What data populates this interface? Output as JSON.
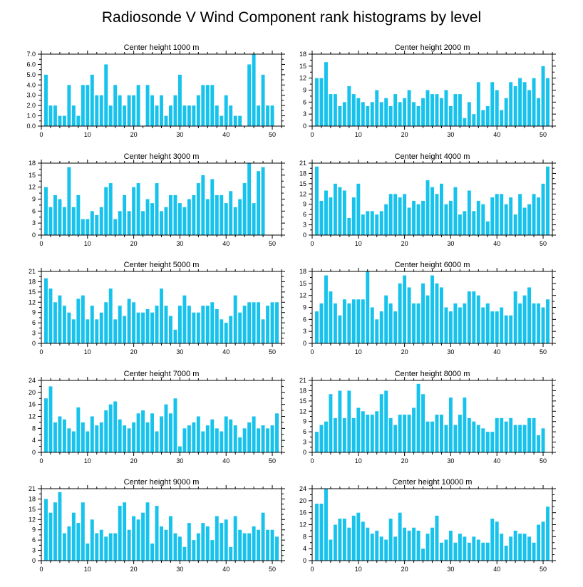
{
  "figure_title": "Radiosonde V Wind Component rank histograms by level",
  "colors": {
    "bar": "#17c3ec",
    "axis": "#000000",
    "background": "#ffffff"
  },
  "chart_data": [
    {
      "type": "bar",
      "title": "Center height 1000 m",
      "xlim": [
        0,
        52
      ],
      "ylim": [
        0,
        7.0
      ],
      "xticks": [
        0,
        10,
        20,
        30,
        40,
        50
      ],
      "yticks": [
        0,
        1,
        2,
        3,
        4,
        5,
        6,
        7
      ],
      "ytick_labels": [
        "0.0",
        "1.0",
        "2.0",
        "3.0",
        "4.0",
        "5.0",
        "6.0",
        "7.0"
      ],
      "x": [
        1,
        2,
        3,
        4,
        5,
        6,
        7,
        8,
        9,
        10,
        11,
        12,
        13,
        14,
        15,
        16,
        17,
        18,
        19,
        20,
        21,
        22,
        23,
        24,
        25,
        26,
        27,
        28,
        29,
        30,
        31,
        32,
        33,
        34,
        35,
        36,
        37,
        38,
        39,
        40,
        41,
        42,
        43,
        44,
        45,
        46,
        47,
        48,
        49,
        50,
        51
      ],
      "values": [
        5,
        2,
        2,
        1,
        1,
        4,
        2,
        1,
        4,
        4,
        5,
        3,
        3,
        6,
        2,
        4,
        3,
        2,
        3,
        3,
        4,
        0,
        4,
        3,
        2,
        3,
        1,
        2,
        3,
        5,
        2,
        2,
        2,
        3,
        4,
        4,
        4,
        2,
        1,
        3,
        2,
        1,
        1,
        0,
        6,
        7,
        2,
        5,
        2,
        2,
        0
      ]
    },
    {
      "type": "bar",
      "title": "Center height 2000 m",
      "xlim": [
        0,
        52
      ],
      "ylim": [
        0,
        18
      ],
      "xticks": [
        0,
        10,
        20,
        30,
        40,
        50
      ],
      "yticks": [
        0,
        3,
        6,
        9,
        12,
        15,
        18
      ],
      "ytick_labels": [
        "0",
        "3",
        "6",
        "9",
        "12",
        "15",
        "18"
      ],
      "x": [
        1,
        2,
        3,
        4,
        5,
        6,
        7,
        8,
        9,
        10,
        11,
        12,
        13,
        14,
        15,
        16,
        17,
        18,
        19,
        20,
        21,
        22,
        23,
        24,
        25,
        26,
        27,
        28,
        29,
        30,
        31,
        32,
        33,
        34,
        35,
        36,
        37,
        38,
        39,
        40,
        41,
        42,
        43,
        44,
        45,
        46,
        47,
        48,
        49,
        50,
        51
      ],
      "values": [
        12,
        12,
        16,
        8,
        8,
        5,
        6,
        10,
        8,
        7,
        6,
        5,
        6,
        9,
        6,
        7,
        5,
        8,
        6,
        7,
        9,
        6,
        5,
        7,
        9,
        8,
        8,
        7,
        9,
        5,
        8,
        8,
        2,
        6,
        3,
        11,
        4,
        5,
        11,
        9,
        4,
        7,
        11,
        10,
        12,
        11,
        9,
        12,
        7,
        15,
        12
      ]
    },
    {
      "type": "bar",
      "title": "Center height 3000 m",
      "xlim": [
        0,
        52
      ],
      "ylim": [
        0,
        18
      ],
      "xticks": [
        0,
        10,
        20,
        30,
        40,
        50
      ],
      "yticks": [
        0,
        3,
        6,
        9,
        12,
        15,
        18
      ],
      "ytick_labels": [
        "0",
        "3",
        "6",
        "9",
        "12",
        "15",
        "18"
      ],
      "x": [
        1,
        2,
        3,
        4,
        5,
        6,
        7,
        8,
        9,
        10,
        11,
        12,
        13,
        14,
        15,
        16,
        17,
        18,
        19,
        20,
        21,
        22,
        23,
        24,
        25,
        26,
        27,
        28,
        29,
        30,
        31,
        32,
        33,
        34,
        35,
        36,
        37,
        38,
        39,
        40,
        41,
        42,
        43,
        44,
        45,
        46,
        47,
        48,
        49,
        50,
        51
      ],
      "values": [
        12,
        7,
        10,
        9,
        7,
        17,
        7,
        10,
        4,
        4,
        6,
        5,
        7,
        12,
        13,
        4,
        6,
        10,
        6,
        12,
        13,
        6,
        9,
        8,
        13,
        6,
        7,
        10,
        10,
        8,
        7,
        9,
        10,
        13,
        15,
        9,
        14,
        10,
        10,
        8,
        11,
        7,
        9,
        13,
        18,
        8,
        16,
        17,
        0,
        0,
        0
      ]
    },
    {
      "type": "bar",
      "title": "Center height 4000 m",
      "xlim": [
        0,
        52
      ],
      "ylim": [
        0,
        21
      ],
      "xticks": [
        0,
        10,
        20,
        30,
        40,
        50
      ],
      "yticks": [
        0,
        3,
        6,
        9,
        12,
        15,
        18,
        21
      ],
      "ytick_labels": [
        "0",
        "3",
        "6",
        "9",
        "12",
        "15",
        "18",
        "21"
      ],
      "x": [
        1,
        2,
        3,
        4,
        5,
        6,
        7,
        8,
        9,
        10,
        11,
        12,
        13,
        14,
        15,
        16,
        17,
        18,
        19,
        20,
        21,
        22,
        23,
        24,
        25,
        26,
        27,
        28,
        29,
        30,
        31,
        32,
        33,
        34,
        35,
        36,
        37,
        38,
        39,
        40,
        41,
        42,
        43,
        44,
        45,
        46,
        47,
        48,
        49,
        50,
        51
      ],
      "values": [
        20,
        10,
        13,
        11,
        15,
        14,
        13,
        5,
        11,
        15,
        6,
        7,
        7,
        6,
        7,
        9,
        12,
        12,
        11,
        12,
        8,
        10,
        9,
        10,
        16,
        14,
        12,
        15,
        9,
        10,
        14,
        6,
        7,
        13,
        7,
        10,
        9,
        4,
        11,
        12,
        12,
        9,
        11,
        6,
        12,
        8,
        9,
        12,
        11,
        15,
        20
      ]
    },
    {
      "type": "bar",
      "title": "Center height 5000 m",
      "xlim": [
        0,
        52
      ],
      "ylim": [
        0,
        21
      ],
      "xticks": [
        0,
        10,
        20,
        30,
        40,
        50
      ],
      "yticks": [
        0,
        3,
        6,
        9,
        12,
        15,
        18,
        21
      ],
      "ytick_labels": [
        "0",
        "3",
        "6",
        "9",
        "12",
        "15",
        "18",
        "21"
      ],
      "x": [
        1,
        2,
        3,
        4,
        5,
        6,
        7,
        8,
        9,
        10,
        11,
        12,
        13,
        14,
        15,
        16,
        17,
        18,
        19,
        20,
        21,
        22,
        23,
        24,
        25,
        26,
        27,
        28,
        29,
        30,
        31,
        32,
        33,
        34,
        35,
        36,
        37,
        38,
        39,
        40,
        41,
        42,
        43,
        44,
        45,
        46,
        47,
        48,
        49,
        50,
        51
      ],
      "values": [
        19,
        16,
        12,
        14,
        11,
        9,
        7,
        13,
        14,
        7,
        11,
        7,
        9,
        12,
        16,
        7,
        11,
        8,
        13,
        12,
        9,
        9,
        10,
        9,
        11,
        16,
        11,
        8,
        4,
        11,
        14,
        11,
        9,
        9,
        11,
        11,
        12,
        10,
        7,
        6,
        8,
        14,
        9,
        11,
        12,
        12,
        12,
        7,
        11,
        12,
        12
      ]
    },
    {
      "type": "bar",
      "title": "Center height 6000 m",
      "xlim": [
        0,
        52
      ],
      "ylim": [
        0,
        18
      ],
      "xticks": [
        0,
        10,
        20,
        30,
        40,
        50
      ],
      "yticks": [
        0,
        3,
        6,
        9,
        12,
        15,
        18
      ],
      "ytick_labels": [
        "0",
        "3",
        "6",
        "9",
        "12",
        "15",
        "18"
      ],
      "x": [
        1,
        2,
        3,
        4,
        5,
        6,
        7,
        8,
        9,
        10,
        11,
        12,
        13,
        14,
        15,
        16,
        17,
        18,
        19,
        20,
        21,
        22,
        23,
        24,
        25,
        26,
        27,
        28,
        29,
        30,
        31,
        32,
        33,
        34,
        35,
        36,
        37,
        38,
        39,
        40,
        41,
        42,
        43,
        44,
        45,
        46,
        47,
        48,
        49,
        50,
        51
      ],
      "values": [
        8,
        10,
        17,
        13,
        10,
        7,
        11,
        10,
        11,
        11,
        11,
        18,
        9,
        6,
        8,
        12,
        10,
        8,
        15,
        17,
        14,
        10,
        10,
        15,
        12,
        17,
        15,
        14,
        9,
        8,
        10,
        9,
        10,
        13,
        13,
        12,
        9,
        10,
        8,
        8,
        9,
        7,
        7,
        13,
        10,
        12,
        14,
        10,
        10,
        9,
        11
      ]
    },
    {
      "type": "bar",
      "title": "Center height 7000 m",
      "xlim": [
        0,
        52
      ],
      "ylim": [
        0,
        24
      ],
      "xticks": [
        0,
        10,
        20,
        30,
        40,
        50
      ],
      "yticks": [
        0,
        4,
        8,
        12,
        16,
        20,
        24
      ],
      "ytick_labels": [
        "0",
        "4",
        "8",
        "12",
        "16",
        "20",
        "24"
      ],
      "x": [
        1,
        2,
        3,
        4,
        5,
        6,
        7,
        8,
        9,
        10,
        11,
        12,
        13,
        14,
        15,
        16,
        17,
        18,
        19,
        20,
        21,
        22,
        23,
        24,
        25,
        26,
        27,
        28,
        29,
        30,
        31,
        32,
        33,
        34,
        35,
        36,
        37,
        38,
        39,
        40,
        41,
        42,
        43,
        44,
        45,
        46,
        47,
        48,
        49,
        50,
        51
      ],
      "values": [
        18,
        22,
        10,
        12,
        11,
        8,
        7,
        15,
        10,
        7,
        12,
        9,
        10,
        14,
        16,
        17,
        11,
        9,
        8,
        10,
        13,
        14,
        10,
        13,
        7,
        12,
        16,
        13,
        18,
        2,
        8,
        9,
        10,
        12,
        7,
        9,
        11,
        8,
        7,
        12,
        11,
        9,
        5,
        8,
        10,
        12,
        8,
        9,
        8,
        9,
        13
      ]
    },
    {
      "type": "bar",
      "title": "Center height 8000 m",
      "xlim": [
        0,
        52
      ],
      "ylim": [
        0,
        21
      ],
      "xticks": [
        0,
        10,
        20,
        30,
        40,
        50
      ],
      "yticks": [
        0,
        3,
        6,
        9,
        12,
        15,
        18,
        21
      ],
      "ytick_labels": [
        "0",
        "3",
        "6",
        "9",
        "12",
        "15",
        "18",
        "21"
      ],
      "x": [
        1,
        2,
        3,
        4,
        5,
        6,
        7,
        8,
        9,
        10,
        11,
        12,
        13,
        14,
        15,
        16,
        17,
        18,
        19,
        20,
        21,
        22,
        23,
        24,
        25,
        26,
        27,
        28,
        29,
        30,
        31,
        32,
        33,
        34,
        35,
        36,
        37,
        38,
        39,
        40,
        41,
        42,
        43,
        44,
        45,
        46,
        47,
        48,
        49,
        50,
        51
      ],
      "values": [
        6,
        8,
        9,
        17,
        10,
        18,
        10,
        18,
        10,
        13,
        12,
        11,
        11,
        12,
        17,
        18,
        10,
        8,
        11,
        11,
        11,
        13,
        20,
        17,
        9,
        9,
        11,
        11,
        8,
        16,
        8,
        11,
        16,
        10,
        9,
        8,
        7,
        6,
        6,
        10,
        10,
        9,
        10,
        8,
        8,
        8,
        10,
        10,
        5,
        7,
        0
      ]
    },
    {
      "type": "bar",
      "title": "Center height 9000 m",
      "xlim": [
        0,
        52
      ],
      "ylim": [
        0,
        21
      ],
      "xticks": [
        0,
        10,
        20,
        30,
        40,
        50
      ],
      "yticks": [
        0,
        3,
        6,
        9,
        12,
        15,
        18,
        21
      ],
      "ytick_labels": [
        "0",
        "3",
        "6",
        "9",
        "12",
        "15",
        "18",
        "21"
      ],
      "x": [
        1,
        2,
        3,
        4,
        5,
        6,
        7,
        8,
        9,
        10,
        11,
        12,
        13,
        14,
        15,
        16,
        17,
        18,
        19,
        20,
        21,
        22,
        23,
        24,
        25,
        26,
        27,
        28,
        29,
        30,
        31,
        32,
        33,
        34,
        35,
        36,
        37,
        38,
        39,
        40,
        41,
        42,
        43,
        44,
        45,
        46,
        47,
        48,
        49,
        50,
        51
      ],
      "values": [
        18,
        14,
        17,
        20,
        8,
        10,
        14,
        11,
        17,
        5,
        12,
        8,
        9,
        7,
        8,
        8,
        16,
        17,
        9,
        13,
        12,
        14,
        17,
        5,
        16,
        10,
        9,
        13,
        8,
        7,
        4,
        11,
        6,
        8,
        11,
        10,
        6,
        13,
        11,
        12,
        4,
        13,
        9,
        8,
        8,
        10,
        9,
        14,
        9,
        9,
        7
      ]
    },
    {
      "type": "bar",
      "title": "Center height 10000 m",
      "xlim": [
        0,
        52
      ],
      "ylim": [
        0,
        24
      ],
      "xticks": [
        0,
        10,
        20,
        30,
        40,
        50
      ],
      "yticks": [
        0,
        4,
        8,
        12,
        16,
        20,
        24
      ],
      "ytick_labels": [
        "0",
        "4",
        "8",
        "12",
        "16",
        "20",
        "24"
      ],
      "x": [
        1,
        2,
        3,
        4,
        5,
        6,
        7,
        8,
        9,
        10,
        11,
        12,
        13,
        14,
        15,
        16,
        17,
        18,
        19,
        20,
        21,
        22,
        23,
        24,
        25,
        26,
        27,
        28,
        29,
        30,
        31,
        32,
        33,
        34,
        35,
        36,
        37,
        38,
        39,
        40,
        41,
        42,
        43,
        44,
        45,
        46,
        47,
        48,
        49,
        50,
        51
      ],
      "values": [
        19,
        19,
        24,
        7,
        12,
        14,
        14,
        11,
        15,
        16,
        13,
        11,
        9,
        10,
        8,
        7,
        14,
        8,
        16,
        11,
        10,
        11,
        10,
        4,
        9,
        11,
        15,
        6,
        7,
        10,
        6,
        9,
        8,
        6,
        8,
        7,
        6,
        6,
        14,
        13,
        9,
        5,
        8,
        10,
        9,
        9,
        8,
        6,
        12,
        13,
        18
      ]
    }
  ]
}
